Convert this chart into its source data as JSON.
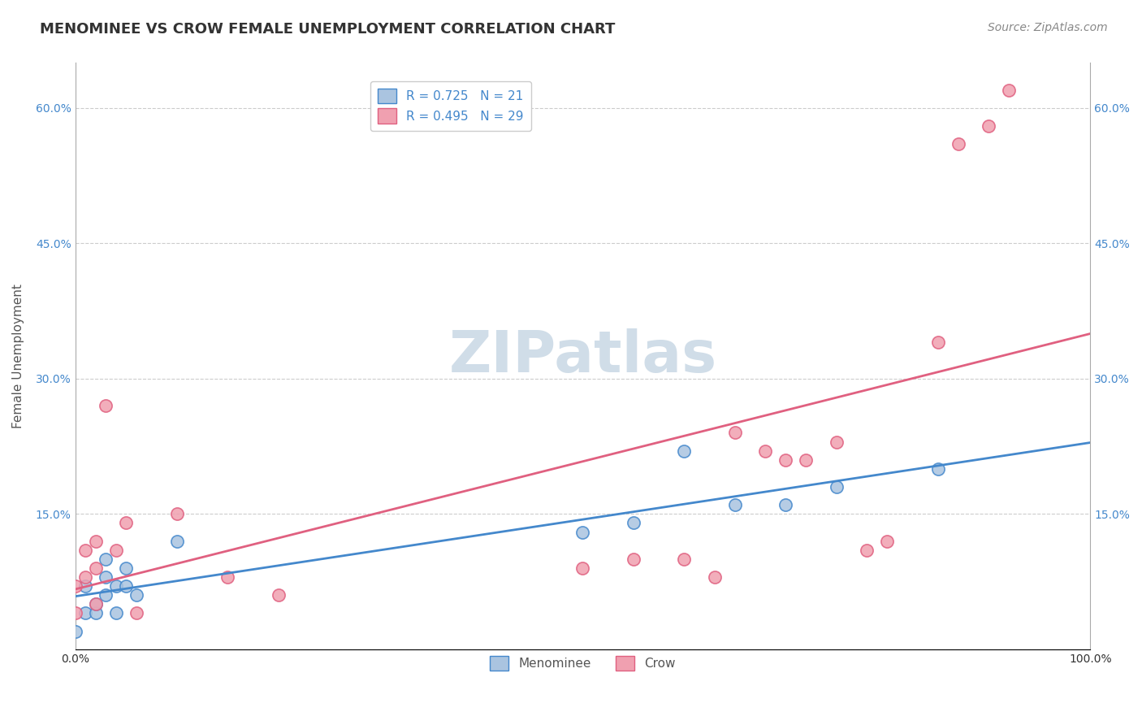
{
  "title": "MENOMINEE VS CROW FEMALE UNEMPLOYMENT CORRELATION CHART",
  "source": "Source: ZipAtlas.com",
  "xlabel": "",
  "ylabel": "Female Unemployment",
  "legend_labels": [
    "Menominee",
    "Crow"
  ],
  "menominee_R": 0.725,
  "menominee_N": 21,
  "crow_R": 0.495,
  "crow_N": 29,
  "menominee_color": "#aac4e0",
  "crow_color": "#f0a0b0",
  "menominee_line_color": "#4488cc",
  "crow_line_color": "#e06080",
  "background_color": "#ffffff",
  "watermark": "ZIPatlas",
  "xlim": [
    0,
    1.0
  ],
  "ylim": [
    0,
    0.65
  ],
  "xticks": [
    0.0,
    1.0
  ],
  "xtick_labels": [
    "0.0%",
    "100.0%"
  ],
  "ytick_values": [
    0.0,
    0.15,
    0.3,
    0.45,
    0.6
  ],
  "ytick_labels": [
    "",
    "15.0%",
    "30.0%",
    "45.0%",
    "60.0%"
  ],
  "menominee_x": [
    0.0,
    0.01,
    0.01,
    0.02,
    0.02,
    0.03,
    0.03,
    0.03,
    0.04,
    0.04,
    0.05,
    0.05,
    0.06,
    0.1,
    0.5,
    0.55,
    0.6,
    0.65,
    0.7,
    0.75,
    0.85
  ],
  "menominee_y": [
    0.02,
    0.04,
    0.07,
    0.04,
    0.05,
    0.06,
    0.08,
    0.1,
    0.04,
    0.07,
    0.07,
    0.09,
    0.06,
    0.12,
    0.13,
    0.14,
    0.22,
    0.16,
    0.16,
    0.18,
    0.2
  ],
  "crow_x": [
    0.0,
    0.0,
    0.01,
    0.01,
    0.02,
    0.02,
    0.02,
    0.03,
    0.04,
    0.05,
    0.06,
    0.1,
    0.15,
    0.2,
    0.5,
    0.55,
    0.6,
    0.63,
    0.65,
    0.68,
    0.7,
    0.72,
    0.75,
    0.78,
    0.8,
    0.85,
    0.87,
    0.9,
    0.92
  ],
  "crow_y": [
    0.04,
    0.07,
    0.08,
    0.11,
    0.05,
    0.09,
    0.12,
    0.27,
    0.11,
    0.14,
    0.04,
    0.15,
    0.08,
    0.06,
    0.09,
    0.1,
    0.1,
    0.08,
    0.24,
    0.22,
    0.21,
    0.21,
    0.23,
    0.11,
    0.12,
    0.34,
    0.56,
    0.58,
    0.62
  ],
  "grid_color": "#cccccc",
  "title_fontsize": 13,
  "axis_fontsize": 11,
  "tick_fontsize": 10,
  "legend_fontsize": 11,
  "source_fontsize": 10,
  "watermark_color": "#d0dde8",
  "watermark_fontsize": 52
}
